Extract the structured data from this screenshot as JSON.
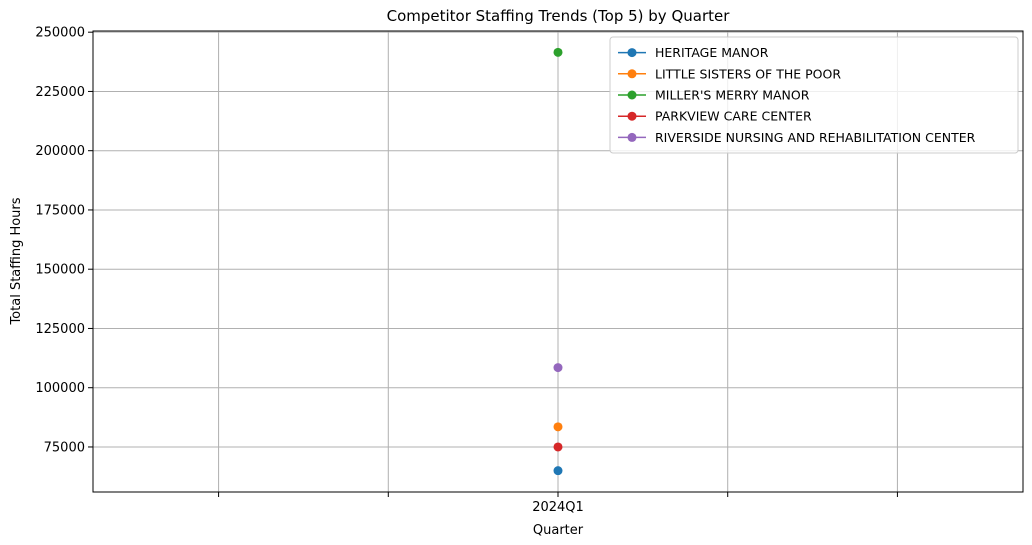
{
  "chart_data": {
    "type": "scatter",
    "title": "Competitor Staffing Trends (Top 5) by Quarter",
    "xlabel": "Quarter",
    "ylabel": "Total Staffing Hours",
    "x_categories": [
      "2024Q1"
    ],
    "x_tick_positions": [
      -0.2,
      -0.1,
      0,
      0.1,
      0.2
    ],
    "x_tick_labels": [
      "",
      "",
      "2024Q1",
      "",
      ""
    ],
    "xlim": [
      -0.274,
      0.274
    ],
    "ylim": [
      56000,
      250500
    ],
    "y_ticks": [
      75000,
      100000,
      125000,
      150000,
      175000,
      200000,
      225000,
      250000
    ],
    "y_tick_labels": [
      "75000",
      "100000",
      "125000",
      "150000",
      "175000",
      "200000",
      "225000",
      "250000"
    ],
    "grid": true,
    "legend_position": "top-right",
    "series": [
      {
        "name": "HERITAGE MANOR",
        "color": "#1f77b4",
        "x": [
          "2024Q1"
        ],
        "values": [
          65000
        ]
      },
      {
        "name": "LITTLE SISTERS OF THE POOR",
        "color": "#ff7f0e",
        "x": [
          "2024Q1"
        ],
        "values": [
          83500
        ]
      },
      {
        "name": "MILLER'S MERRY MANOR",
        "color": "#2ca02c",
        "x": [
          "2024Q1"
        ],
        "values": [
          241500
        ]
      },
      {
        "name": "PARKVIEW CARE CENTER",
        "color": "#d62728",
        "x": [
          "2024Q1"
        ],
        "values": [
          75000
        ]
      },
      {
        "name": "RIVERSIDE NURSING AND REHABILITATION CENTER",
        "color": "#9467bd",
        "x": [
          "2024Q1"
        ],
        "values": [
          108500
        ]
      }
    ]
  }
}
